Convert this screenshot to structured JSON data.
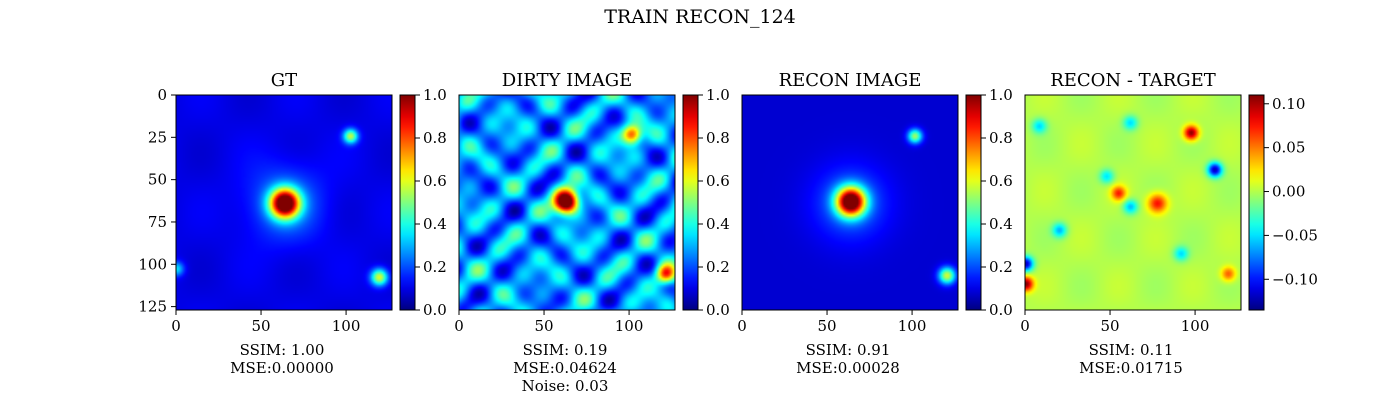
{
  "figure_title": "TRAIN RECON_124",
  "chart_data": [
    {
      "type": "heatmap",
      "title": "GT",
      "x_ticks": [
        0,
        50,
        100
      ],
      "y_ticks": [
        0,
        25,
        50,
        75,
        100,
        125
      ],
      "xlim": [
        0,
        127
      ],
      "ylim": [
        127,
        0
      ],
      "colormap": "jet",
      "colorbar": {
        "min": 0.0,
        "max": 1.0,
        "ticks": [
          "0.0",
          "0.2",
          "0.4",
          "0.6",
          "0.8",
          "1.0"
        ]
      },
      "sources": [
        {
          "x": 64,
          "y": 64,
          "amp": 1.0,
          "sigma": 6
        },
        {
          "x": 103,
          "y": 24,
          "amp": 0.45,
          "sigma": 3
        },
        {
          "x": 120,
          "y": 108,
          "amp": 0.5,
          "sigma": 3.5
        },
        {
          "x": 0,
          "y": 103,
          "amp": 0.25,
          "sigma": 3
        }
      ],
      "caption": [
        "SSIM: 1.00",
        "MSE:0.00000"
      ]
    },
    {
      "type": "heatmap",
      "title": "DIRTY IMAGE",
      "x_ticks": [
        0,
        50,
        100
      ],
      "y_ticks": [],
      "xlim": [
        0,
        127
      ],
      "ylim": [
        127,
        0
      ],
      "colormap": "jet",
      "colorbar": {
        "min": 0.0,
        "max": 1.0,
        "ticks": [
          "0.0",
          "0.2",
          "0.4",
          "0.6",
          "0.8",
          "1.0"
        ]
      },
      "sources": [
        {
          "x": 63,
          "y": 63,
          "amp": 1.0,
          "sigma": 5
        },
        {
          "x": 102,
          "y": 23,
          "amp": 0.6,
          "sigma": 4
        },
        {
          "x": 122,
          "y": 106,
          "amp": 0.6,
          "sigma": 4
        }
      ],
      "caption": [
        "SSIM: 0.19",
        "MSE:0.04624",
        "Noise: 0.03"
      ]
    },
    {
      "type": "heatmap",
      "title": "RECON IMAGE",
      "x_ticks": [
        0,
        50,
        100
      ],
      "y_ticks": [],
      "xlim": [
        0,
        127
      ],
      "ylim": [
        127,
        0
      ],
      "colormap": "jet",
      "colorbar": {
        "min": 0.0,
        "max": 1.0,
        "ticks": [
          "0.0",
          "0.2",
          "0.4",
          "0.6",
          "0.8",
          "1.0"
        ]
      },
      "sources": [
        {
          "x": 64,
          "y": 63,
          "amp": 1.0,
          "sigma": 6
        },
        {
          "x": 102,
          "y": 24,
          "amp": 0.45,
          "sigma": 3
        },
        {
          "x": 121,
          "y": 107,
          "amp": 0.5,
          "sigma": 3.5
        }
      ],
      "caption": [
        "SSIM: 0.91",
        "MSE:0.00028"
      ]
    },
    {
      "type": "heatmap",
      "title": "RECON - TARGET",
      "x_ticks": [
        0,
        50,
        100
      ],
      "y_ticks": [],
      "xlim": [
        0,
        127
      ],
      "ylim": [
        127,
        0
      ],
      "colormap": "jet",
      "colorbar": {
        "min": -0.135,
        "max": 0.11,
        "ticks": [
          "0.10",
          "0.05",
          "0.00",
          "−0.05",
          "−0.10"
        ],
        "tick_values": [
          0.1,
          0.05,
          0.0,
          -0.05,
          -0.1
        ]
      },
      "sources": [
        {
          "x": 98,
          "y": 22,
          "amp": 0.11,
          "sigma": 3
        },
        {
          "x": 55,
          "y": 58,
          "amp": 0.07,
          "sigma": 3
        },
        {
          "x": 78,
          "y": 64,
          "amp": 0.08,
          "sigma": 4
        },
        {
          "x": 120,
          "y": 106,
          "amp": 0.06,
          "sigma": 3
        },
        {
          "x": 0,
          "y": 112,
          "amp": 0.11,
          "sigma": 3
        },
        {
          "x": 112,
          "y": 44,
          "amp": -0.12,
          "sigma": 3
        },
        {
          "x": 0,
          "y": 100,
          "amp": -0.12,
          "sigma": 3
        },
        {
          "x": 62,
          "y": 66,
          "amp": -0.06,
          "sigma": 3
        },
        {
          "x": 20,
          "y": 80,
          "amp": -0.06,
          "sigma": 3
        },
        {
          "x": 8,
          "y": 18,
          "amp": -0.05,
          "sigma": 3
        },
        {
          "x": 62,
          "y": 16,
          "amp": -0.05,
          "sigma": 3
        },
        {
          "x": 48,
          "y": 48,
          "amp": -0.05,
          "sigma": 3
        },
        {
          "x": 92,
          "y": 94,
          "amp": -0.05,
          "sigma": 3
        }
      ],
      "caption": [
        "SSIM: 0.11",
        "MSE:0.01715"
      ]
    }
  ]
}
